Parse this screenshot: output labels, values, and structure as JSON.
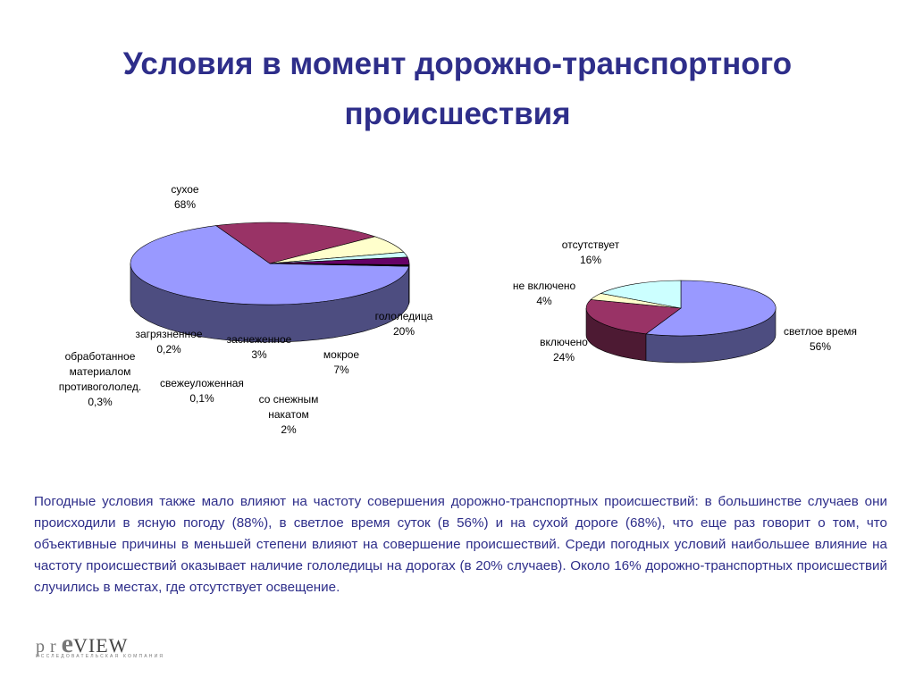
{
  "title": "Условия в момент дорожно-транспортного происшествия",
  "chart_data": [
    {
      "type": "pie",
      "slices": [
        {
          "label": "сухое",
          "value": 68,
          "value_text": "68%",
          "color": "#9999ff"
        },
        {
          "label": "гололедица",
          "value": 20,
          "value_text": "20%",
          "color": "#993366"
        },
        {
          "label": "мокрое",
          "value": 7,
          "value_text": "7%",
          "color": "#ffffcc"
        },
        {
          "label": "со снежным накатом",
          "value": 2,
          "value_text": "2%",
          "color": "#ccffff"
        },
        {
          "label": "заснеженное",
          "value": 3,
          "value_text": "3%",
          "color": "#660066"
        },
        {
          "label": "загрязненное",
          "value": 0.2,
          "value_text": "0,2%",
          "color": "#0066cc"
        },
        {
          "label": "свежеуложенная",
          "value": 0.1,
          "value_text": "0,1%",
          "color": "#000080"
        },
        {
          "label": "обработанное материалом противогололед.",
          "value": 0.3,
          "value_text": "0,3%",
          "color": "#333333"
        }
      ]
    },
    {
      "type": "pie",
      "slices": [
        {
          "label": "светлое время",
          "value": 56,
          "value_text": "56%",
          "color": "#9999ff"
        },
        {
          "label": "включено",
          "value": 24,
          "value_text": "24%",
          "color": "#993366"
        },
        {
          "label": "не включено",
          "value": 4,
          "value_text": "4%",
          "color": "#ffffcc"
        },
        {
          "label": "отсутствует",
          "value": 16,
          "value_text": "16%",
          "color": "#ccffff"
        }
      ]
    }
  ],
  "body_text": "Погодные условия также мало влияют на частоту совершения дорожно-транспортных происшествий: в большинстве случаев они происходили в ясную погоду (88%),  в светлое время суток (в 56%) и на сухой дороге (68%), что еще раз говорит о том, что объективные причины в меньшей степени влияют на совершение происшествий.  Среди погодных условий наибольшее влияние на частоту происшествий оказывает наличие гололедицы на дорогах (в 20% случаев). Около 16% дорожно-транспортных происшествий случились в местах, где отсутствует  освещение.",
  "logo": {
    "pr": "pr",
    "e": "e",
    "view": "VIEW",
    "subtitle": "ИССЛЕДОВАТЕЛЬСКАЯ КОМПАНИЯ"
  }
}
